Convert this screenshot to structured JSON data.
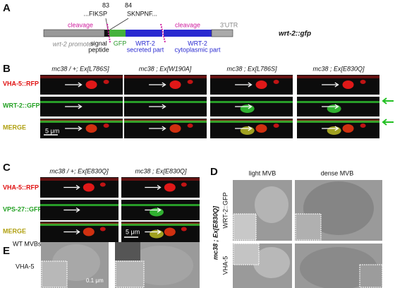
{
  "panel_a": {
    "label": "A",
    "pos_left": 83,
    "pos_right": 84,
    "seq_left": "...FIKSP",
    "seq_right": "SKNPNF...",
    "cleavage_left": "cleavage",
    "cleavage_right": "cleavage",
    "utr": "3'UTR",
    "promoter": "wrt-2 promoter",
    "signal": [
      "signal",
      "peptide"
    ],
    "gfp": "GFP",
    "secreted": [
      "WRT-2",
      "secreted part"
    ],
    "cytoplasmic": [
      "WRT-2",
      "cytoplasmic part"
    ],
    "construct": "wrt-2::gfp"
  },
  "panel_b": {
    "label": "B",
    "columns": [
      "mc38 / +; Ex[L786S]",
      "mc38 ; Ex[W190A]",
      "mc38 ; Ex[L786S]",
      "mc38 ; Ex[E830Q]"
    ],
    "rows": [
      "VHA-5::RFP",
      "WRT-2::GFP",
      "MERGE"
    ],
    "scale_bar": "5 μm"
  },
  "panel_c": {
    "label": "C",
    "columns": [
      "mc38 / +; Ex[E830Q]",
      "mc38 ; Ex[E830Q]"
    ],
    "rows": [
      "VHA-5::RFP",
      "VPS-27::GFP",
      "MERGE"
    ],
    "scale_bar": "5 μm"
  },
  "panel_d": {
    "label": "D",
    "columns": [
      "light MVB",
      "dense MVB"
    ],
    "genotype": "mc38 ; Ex[E830Q]",
    "rows": [
      "WRT-2::GFP",
      "VHA-5"
    ]
  },
  "panel_e": {
    "label": "E",
    "title": "WT MVBs",
    "marker": "VHA-5",
    "scale_bar": "0.1 μm"
  }
}
